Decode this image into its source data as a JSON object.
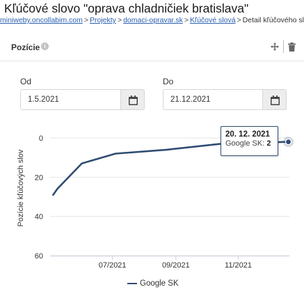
{
  "page": {
    "title": "Kľúčové slovo \"oprava chladničiek bratislava\"",
    "breadcrumb": {
      "items": [
        "miniweby.oncollabim.com",
        "Projekty",
        "domaci-opravar.sk",
        "Kľúčové slová"
      ],
      "current": "Detail kľúčového slova",
      "separator": ">"
    }
  },
  "card": {
    "title": "Pozície",
    "info_icon": "info-icon",
    "move_icon": "move-icon",
    "delete_icon": "trash-icon"
  },
  "filters": {
    "from_label": "Od",
    "from_value": "1.5.2021",
    "to_label": "Do",
    "to_value": "21.12.2021",
    "calendar_icon": "calendar-icon"
  },
  "chart_data": {
    "type": "line",
    "ylabel": "Pozície kľúčových slov",
    "y_inverted": true,
    "ylim": [
      0,
      60
    ],
    "yticks": [
      0,
      20,
      40,
      60
    ],
    "x_ticks": [
      {
        "label": "07/2021",
        "date": "2021-07-01"
      },
      {
        "label": "09/2021",
        "date": "2021-09-01"
      },
      {
        "label": "11/2021",
        "date": "2021-11-01"
      }
    ],
    "xlim": [
      "2021-05-01",
      "2021-12-21"
    ],
    "series": [
      {
        "name": "Google SK",
        "color": "#2f4d72",
        "points": [
          {
            "x": "2021-05-04",
            "y": 29
          },
          {
            "x": "2021-05-08",
            "y": 26
          },
          {
            "x": "2021-06-01",
            "y": 13
          },
          {
            "x": "2021-07-04",
            "y": 8
          },
          {
            "x": "2021-08-23",
            "y": 6
          },
          {
            "x": "2021-10-15",
            "y": 3
          },
          {
            "x": "2021-12-20",
            "y": 2
          }
        ]
      }
    ],
    "tooltip": {
      "date": "20. 12. 2021",
      "series": "Google SK",
      "value": "2"
    },
    "legend": {
      "position": "bottom"
    }
  }
}
